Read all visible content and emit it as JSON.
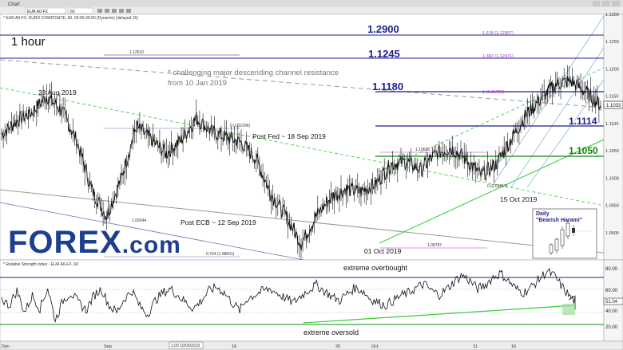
{
  "window": {
    "tab_label": "Chart",
    "symbol_input": "EUR A0-FX",
    "interval_input": "60",
    "toolbar_icons": [
      "zoom-in-icon",
      "zoom-out-icon",
      "crosshair-icon",
      "draw-icon",
      "settings-icon",
      "window-minimize-icon",
      "window-maximize-icon",
      "window-close-icon"
    ]
  },
  "price_panel": {
    "header": "* EUR A0-FX, EURO COMPOSITE, 60, 00:00-00:00 (Dynamic) (delayed 15)",
    "timeframe_label": "1 hour",
    "annotation": "* challenging major descending channel resistance\nfrom 10 Jan 2019",
    "last_price_label": "1.1033",
    "colors": {
      "up_line": "#2a2adb",
      "green": "#22aa22",
      "pink": "#aa33cc",
      "candle": "#111111",
      "resistance": "#1f1f8f"
    }
  },
  "levels": [
    {
      "value": 1.29,
      "label": "1.2900",
      "fib": "1.618 (1.12907)"
    },
    {
      "value": 1.1245,
      "label": "1.1245",
      "fib": "1.382 (1.12471)"
    },
    {
      "value": 1.118,
      "label": "1.1180",
      "fib": "1 (1.11785)"
    },
    {
      "value": 1.1114,
      "label": "1.1114"
    },
    {
      "value": 1.105,
      "label": "1.1050"
    }
  ],
  "fib_labels": [
    {
      "text": "1.12510"
    },
    {
      "text": "0 (1.11096)"
    },
    {
      "text": "1.10635"
    },
    {
      "text": "0 (1.09917)"
    },
    {
      "text": "1.09244"
    },
    {
      "text": "1.08787"
    },
    {
      "text": "0.764 (1.08601)"
    }
  ],
  "events": [
    {
      "text": "23 Aug 2019"
    },
    {
      "text": "Post Fed ~ 18 Sep 2019"
    },
    {
      "text": "Post ECB ~ 12 Sep 2019"
    },
    {
      "text": "01 Oct 2019"
    },
    {
      "text": "15 Oct 2019"
    }
  ],
  "inset": {
    "title": "Daily",
    "subtitle": "\"Bearish Harami\""
  },
  "rsi_panel": {
    "header": "* Relative Strength Index - EUR A0-FX, 60",
    "overbought_label": "extreme overbought",
    "oversold_label": "extreme oversold",
    "last_value": "51.04",
    "ticks": [
      "80.00",
      "60.00",
      "51.04",
      "40.00",
      "20.00"
    ]
  },
  "time_axis": {
    "labels": [
      "Sep",
      "16",
      "26",
      "Oct",
      "11",
      "16"
    ],
    "cursor_date": "1.00 10/09/2019",
    "left_label": "Dyn"
  },
  "logo": {
    "text": "FOREX",
    "suffix": ".com"
  },
  "chart_data": {
    "type": "line",
    "xlabel": "",
    "ylabel": "",
    "ylim": [
      1.085,
      1.13
    ],
    "y_ticks": [
      1.13,
      1.125,
      1.12,
      1.115,
      1.11,
      1.105,
      1.1,
      1.095,
      1.09
    ],
    "x": [
      0,
      5,
      10,
      15,
      20,
      25,
      30,
      35,
      40,
      45,
      50,
      55,
      60,
      65,
      70,
      75,
      80,
      85,
      90,
      95,
      100
    ],
    "series": [
      {
        "values": [
          1.108,
          1.1105,
          1.112,
          1.115,
          1.1125,
          1.107,
          1.098,
          1.093,
          1.1,
          1.1095,
          1.107,
          1.1045,
          1.107,
          1.111,
          1.1085,
          1.1075,
          1.1065,
          1.1035,
          1.097,
          1.093,
          1.088
        ]
      },
      {
        "values": [
          1.089,
          1.093,
          1.0965,
          1.098,
          1.0975,
          1.099,
          1.1025,
          1.103,
          1.1015,
          1.1045,
          1.1055,
          1.1035,
          1.1005,
          1.1025,
          1.107,
          1.1115,
          1.1145,
          1.1172,
          1.1178,
          1.1158,
          1.1133
        ]
      }
    ],
    "rsi": {
      "ylim": [
        10,
        90
      ],
      "values": [
        52,
        45,
        60,
        38,
        55,
        42,
        63,
        30,
        50,
        58,
        48,
        40,
        55,
        62,
        45,
        38,
        52,
        60,
        44,
        36,
        50,
        58,
        62,
        55,
        48,
        42,
        50,
        60,
        64,
        58,
        48,
        40,
        52,
        56,
        60,
        62,
        57,
        52,
        48,
        55,
        61,
        66,
        60,
        54,
        50,
        57,
        63,
        60,
        52,
        48,
        45,
        50,
        55,
        58,
        63,
        67,
        60,
        56,
        62,
        70,
        76,
        70,
        62,
        66,
        74,
        78,
        70,
        62,
        58,
        64,
        72,
        80,
        75,
        64,
        54,
        47,
        43,
        48,
        51
      ]
    }
  }
}
